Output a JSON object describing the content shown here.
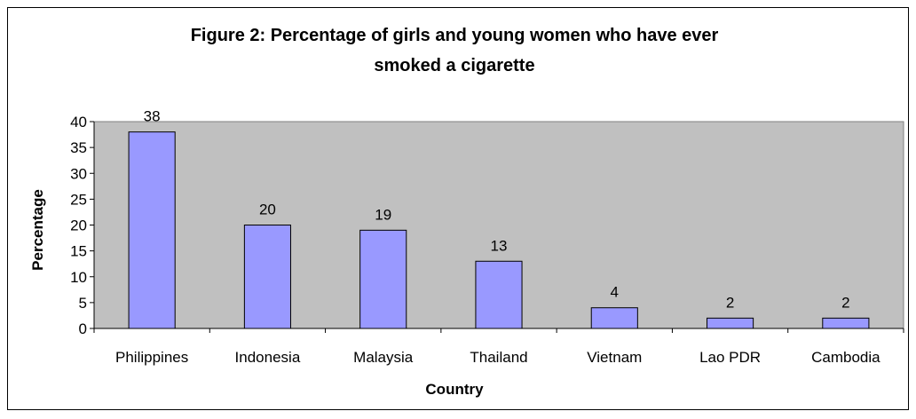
{
  "chart_data": {
    "type": "bar",
    "title_lines": [
      "Figure 2: Percentage of girls and young women who have ever",
      "smoked a cigarette"
    ],
    "categories": [
      "Philippines",
      "Indonesia",
      "Malaysia",
      "Thailand",
      "Vietnam",
      "Lao PDR",
      "Cambodia"
    ],
    "values": [
      38,
      20,
      19,
      13,
      4,
      2,
      2
    ],
    "data_labels": [
      "38",
      "20",
      "19",
      "13",
      "4",
      "2",
      "2"
    ],
    "xlabel": "Country",
    "ylabel": "Percentage",
    "ylim": [
      0,
      40
    ],
    "yticks": [
      "0",
      "5",
      "10",
      "15",
      "20",
      "25",
      "30",
      "35",
      "40"
    ],
    "grid": false,
    "legend": "none",
    "colors": {
      "bar": "#9999ff",
      "plot_area": "#c0c0c0",
      "bar_border": "#000000"
    }
  }
}
